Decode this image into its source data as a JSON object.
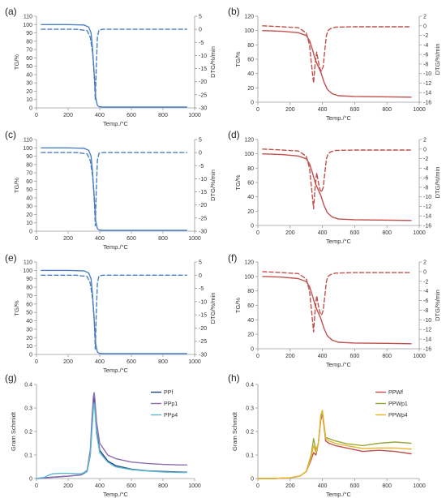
{
  "colors": {
    "blue": "#4a7fc1",
    "red": "#c0504d",
    "ppf": "#1f3f7a",
    "ppp1": "#8e6bb3",
    "ppp4": "#5bb8cf",
    "ppwf": "#c0504d",
    "ppwp1": "#9aa83a",
    "ppwp4": "#e8b52c",
    "axis": "#9a9a9a",
    "text": "#333333"
  },
  "chart_data": [
    {
      "panel": "(a)",
      "type": "line",
      "xlabel": "Temp./°C",
      "ylabel": "TG/%",
      "y2label": "DTG/%/min",
      "xlim": [
        0,
        1000
      ],
      "xticks": [
        0,
        200,
        400,
        600,
        800,
        1000
      ],
      "ylim": [
        0,
        110
      ],
      "yticks": [
        0,
        10,
        20,
        30,
        40,
        50,
        60,
        70,
        80,
        90,
        100,
        110
      ],
      "y2lim": [
        -30,
        5
      ],
      "y2ticks": [
        -30,
        -25,
        -20,
        -15,
        -10,
        -5,
        0,
        5
      ],
      "series": [
        {
          "axis": "left",
          "style": "solid",
          "color_key": "blue",
          "x": [
            30,
            200,
            300,
            330,
            345,
            355,
            365,
            375,
            385,
            395,
            420,
            600,
            800,
            950
          ],
          "y": [
            100,
            100,
            99.5,
            97,
            90,
            70,
            40,
            12,
            3,
            1.5,
            1,
            1,
            1,
            1
          ]
        },
        {
          "axis": "right",
          "style": "dashed",
          "color_key": "blue",
          "x": [
            30,
            250,
            320,
            340,
            355,
            365,
            372,
            378,
            385,
            395,
            420,
            600,
            800,
            950
          ],
          "y": [
            0,
            0,
            -0.5,
            -3,
            -9,
            -17,
            -27,
            -15,
            -3,
            -0.3,
            0,
            0,
            0,
            0
          ]
        }
      ]
    },
    {
      "panel": "(b)",
      "type": "line",
      "xlabel": "Temp./°C",
      "ylabel": "TG/%",
      "y2label": "DTG/%/min",
      "xlim": [
        0,
        1000
      ],
      "xticks": [
        0,
        200,
        400,
        600,
        800,
        1000
      ],
      "ylim": [
        0,
        120
      ],
      "yticks": [
        0,
        20,
        40,
        60,
        80,
        100,
        120
      ],
      "y2lim": [
        -16,
        2
      ],
      "y2ticks": [
        -16,
        -14,
        -12,
        -10,
        -8,
        -6,
        -4,
        -2,
        0,
        2
      ],
      "series": [
        {
          "axis": "left",
          "style": "solid",
          "color_key": "red",
          "x": [
            30,
            150,
            250,
            300,
            320,
            340,
            355,
            370,
            390,
            410,
            430,
            460,
            500,
            600,
            800,
            950
          ],
          "y": [
            100,
            99,
            97,
            93,
            86,
            72,
            60,
            52,
            42,
            28,
            18,
            12,
            9,
            8,
            7.5,
            7
          ]
        },
        {
          "axis": "right",
          "style": "dashed",
          "color_key": "red",
          "x": [
            30,
            150,
            250,
            300,
            320,
            335,
            345,
            355,
            365,
            375,
            385,
            395,
            405,
            415,
            425,
            435,
            450,
            480,
            600,
            800,
            950
          ],
          "y": [
            0,
            -0.2,
            -0.4,
            -1.5,
            -4,
            -9,
            -12,
            -8,
            -5.5,
            -7.5,
            -9,
            -9.5,
            -8.5,
            -5,
            -2,
            -1,
            -0.6,
            -0.3,
            -0.2,
            -0.2,
            -0.2
          ]
        }
      ]
    },
    {
      "panel": "(c)",
      "type": "line",
      "xlabel": "Temp./°C",
      "ylabel": "TG/%",
      "y2label": "DTG/%/min",
      "xlim": [
        0,
        1000
      ],
      "xticks": [
        0,
        200,
        400,
        600,
        800,
        1000
      ],
      "ylim": [
        0,
        110
      ],
      "yticks": [
        0,
        10,
        20,
        30,
        40,
        50,
        60,
        70,
        80,
        90,
        100,
        110
      ],
      "y2lim": [
        -30,
        5
      ],
      "y2ticks": [
        -30,
        -25,
        -20,
        -15,
        -10,
        -5,
        0,
        5
      ],
      "series": [
        {
          "axis": "left",
          "style": "solid",
          "color_key": "blue",
          "x": [
            30,
            200,
            300,
            330,
            345,
            355,
            365,
            375,
            385,
            395,
            420,
            600,
            800,
            950
          ],
          "y": [
            100,
            100,
            99.5,
            97,
            90,
            70,
            40,
            12,
            3,
            1.5,
            1,
            1,
            1,
            1
          ]
        },
        {
          "axis": "right",
          "style": "dashed",
          "color_key": "blue",
          "x": [
            30,
            250,
            320,
            340,
            355,
            365,
            372,
            378,
            385,
            395,
            420,
            600,
            800,
            950
          ],
          "y": [
            0,
            0,
            -0.5,
            -3,
            -9,
            -17,
            -28,
            -15,
            -3,
            -0.3,
            0,
            0,
            0,
            0
          ]
        }
      ]
    },
    {
      "panel": "(d)",
      "type": "line",
      "xlabel": "Temp./°C",
      "ylabel": "TG/%",
      "y2label": "DTG/%/min",
      "xlim": [
        0,
        1000
      ],
      "xticks": [
        0,
        200,
        400,
        600,
        800,
        1000
      ],
      "ylim": [
        0,
        120
      ],
      "yticks": [
        0,
        20,
        40,
        60,
        80,
        100,
        120
      ],
      "y2lim": [
        -16,
        2
      ],
      "y2ticks": [
        -16,
        -14,
        -12,
        -10,
        -8,
        -6,
        -4,
        -2,
        0,
        2
      ],
      "series": [
        {
          "axis": "left",
          "style": "solid",
          "color_key": "red",
          "x": [
            30,
            150,
            250,
            300,
            320,
            340,
            355,
            370,
            390,
            410,
            430,
            460,
            500,
            600,
            800,
            950
          ],
          "y": [
            100,
            99,
            97,
            93,
            86,
            72,
            60,
            52,
            42,
            28,
            18,
            12,
            9,
            8,
            7.5,
            7
          ]
        },
        {
          "axis": "right",
          "style": "dashed",
          "color_key": "red",
          "x": [
            30,
            150,
            250,
            300,
            320,
            335,
            345,
            355,
            365,
            375,
            385,
            395,
            405,
            415,
            425,
            435,
            450,
            480,
            600,
            800,
            950
          ],
          "y": [
            0,
            -0.2,
            -0.4,
            -1.5,
            -4,
            -9,
            -12.5,
            -8,
            -5,
            -7,
            -8.5,
            -9,
            -8,
            -5,
            -2,
            -1,
            -0.6,
            -0.3,
            -0.2,
            -0.2,
            -0.2
          ]
        }
      ]
    },
    {
      "panel": "(e)",
      "type": "line",
      "xlabel": "Temp./°C",
      "ylabel": "TG/%",
      "y2label": "DTG/%/min",
      "xlim": [
        0,
        1000
      ],
      "xticks": [
        0,
        200,
        400,
        600,
        800,
        1000
      ],
      "ylim": [
        0,
        110
      ],
      "yticks": [
        0,
        10,
        20,
        30,
        40,
        50,
        60,
        70,
        80,
        90,
        100,
        110
      ],
      "y2lim": [
        -30,
        5
      ],
      "y2ticks": [
        -30,
        -25,
        -20,
        -15,
        -10,
        -5,
        0,
        5
      ],
      "series": [
        {
          "axis": "left",
          "style": "solid",
          "color_key": "blue",
          "x": [
            30,
            200,
            300,
            330,
            345,
            355,
            365,
            375,
            385,
            395,
            420,
            600,
            800,
            950
          ],
          "y": [
            100,
            100,
            99.5,
            97,
            90,
            70,
            40,
            12,
            3,
            1.5,
            1,
            1,
            1,
            1
          ]
        },
        {
          "axis": "right",
          "style": "dashed",
          "color_key": "blue",
          "x": [
            30,
            250,
            320,
            340,
            355,
            365,
            372,
            378,
            385,
            395,
            420,
            600,
            800,
            950
          ],
          "y": [
            0,
            0,
            -0.5,
            -3,
            -9,
            -17,
            -28,
            -15,
            -3,
            -0.3,
            0,
            0,
            0,
            0
          ]
        }
      ]
    },
    {
      "panel": "(f)",
      "type": "line",
      "xlabel": "Temp./°C",
      "ylabel": "TG/%",
      "y2label": "DTG/%/min",
      "xlim": [
        0,
        1000
      ],
      "xticks": [
        0,
        200,
        400,
        600,
        800,
        1000
      ],
      "ylim": [
        0,
        120
      ],
      "yticks": [
        0,
        20,
        40,
        60,
        80,
        100,
        120
      ],
      "y2lim": [
        -16,
        2
      ],
      "y2ticks": [
        -16,
        -14,
        -12,
        -10,
        -8,
        -6,
        -4,
        -2,
        0,
        2
      ],
      "series": [
        {
          "axis": "left",
          "style": "solid",
          "color_key": "red",
          "x": [
            30,
            150,
            250,
            300,
            320,
            340,
            355,
            370,
            390,
            410,
            430,
            460,
            500,
            600,
            800,
            950
          ],
          "y": [
            100,
            99,
            97,
            93,
            86,
            72,
            60,
            52,
            42,
            28,
            18,
            12,
            9,
            8,
            7.5,
            7
          ]
        },
        {
          "axis": "right",
          "style": "dashed",
          "color_key": "red",
          "x": [
            30,
            150,
            250,
            300,
            320,
            335,
            345,
            355,
            365,
            375,
            385,
            395,
            405,
            415,
            425,
            435,
            450,
            480,
            600,
            800,
            950
          ],
          "y": [
            0,
            -0.2,
            -0.4,
            -1.5,
            -4,
            -9,
            -12.5,
            -8,
            -5,
            -7,
            -8.5,
            -9,
            -8,
            -5,
            -2,
            -1,
            -0.6,
            -0.3,
            -0.2,
            -0.2,
            -0.2
          ]
        }
      ]
    },
    {
      "panel": "(g)",
      "type": "line",
      "xlabel": "Temp./°C",
      "ylabel": "Gram Schmidt",
      "xlim": [
        0,
        1000
      ],
      "xticks": [
        0,
        200,
        400,
        600,
        800,
        1000
      ],
      "ylim": [
        0,
        0.4
      ],
      "yticks": [
        0,
        0.1,
        0.2,
        0.3,
        0.4
      ],
      "legend": "right",
      "series": [
        {
          "name": "PPf",
          "color_key": "ppf",
          "x": [
            0,
            50,
            100,
            200,
            280,
            320,
            340,
            350,
            360,
            365,
            370,
            380,
            400,
            450,
            500,
            600,
            700,
            800,
            900,
            950
          ],
          "y": [
            0,
            0.003,
            0.006,
            0.01,
            0.015,
            0.03,
            0.1,
            0.22,
            0.33,
            0.345,
            0.3,
            0.2,
            0.12,
            0.075,
            0.055,
            0.04,
            0.033,
            0.03,
            0.028,
            0.027
          ]
        },
        {
          "name": "PPp1",
          "color_key": "ppp1",
          "x": [
            0,
            50,
            100,
            200,
            280,
            320,
            340,
            350,
            360,
            365,
            370,
            380,
            400,
            450,
            500,
            600,
            700,
            800,
            900,
            950
          ],
          "y": [
            0,
            0.002,
            0.005,
            0.01,
            0.016,
            0.035,
            0.12,
            0.25,
            0.35,
            0.365,
            0.33,
            0.24,
            0.15,
            0.1,
            0.085,
            0.07,
            0.064,
            0.06,
            0.058,
            0.058
          ]
        },
        {
          "name": "PPp4",
          "color_key": "ppp4",
          "x": [
            0,
            50,
            80,
            100,
            150,
            200,
            280,
            320,
            340,
            350,
            360,
            365,
            370,
            380,
            400,
            450,
            500,
            600,
            700,
            800,
            900,
            950
          ],
          "y": [
            0,
            0.005,
            0.015,
            0.02,
            0.022,
            0.022,
            0.02,
            0.03,
            0.1,
            0.2,
            0.3,
            0.32,
            0.28,
            0.19,
            0.11,
            0.07,
            0.05,
            0.038,
            0.032,
            0.028,
            0.026,
            0.026
          ]
        }
      ]
    },
    {
      "panel": "(h)",
      "type": "line",
      "xlabel": "Temp./°C",
      "ylabel": "Gram Schmidt",
      "xlim": [
        0,
        1000
      ],
      "xticks": [
        0,
        200,
        400,
        600,
        800,
        1000
      ],
      "ylim": [
        0,
        0.4
      ],
      "yticks": [
        0,
        0.1,
        0.2,
        0.3,
        0.4
      ],
      "legend": "right",
      "series": [
        {
          "name": "PPWf",
          "color_key": "ppwf",
          "x": [
            0,
            100,
            200,
            260,
            300,
            330,
            345,
            360,
            375,
            390,
            400,
            410,
            420,
            440,
            480,
            550,
            650,
            750,
            850,
            950
          ],
          "y": [
            0,
            0,
            0.003,
            0.01,
            0.03,
            0.08,
            0.11,
            0.1,
            0.15,
            0.25,
            0.275,
            0.22,
            0.16,
            0.15,
            0.14,
            0.13,
            0.115,
            0.12,
            0.115,
            0.105
          ]
        },
        {
          "name": "PPWp1",
          "color_key": "ppwp1",
          "x": [
            0,
            100,
            200,
            260,
            300,
            330,
            345,
            360,
            375,
            390,
            400,
            410,
            420,
            440,
            480,
            550,
            650,
            750,
            850,
            950
          ],
          "y": [
            0,
            0,
            0.003,
            0.01,
            0.03,
            0.1,
            0.17,
            0.12,
            0.15,
            0.26,
            0.28,
            0.23,
            0.175,
            0.17,
            0.16,
            0.148,
            0.14,
            0.15,
            0.155,
            0.15
          ]
        },
        {
          "name": "PPWp4",
          "color_key": "ppwp4",
          "x": [
            0,
            100,
            200,
            260,
            300,
            330,
            345,
            360,
            375,
            390,
            400,
            410,
            420,
            440,
            480,
            550,
            650,
            750,
            850,
            950
          ],
          "y": [
            0,
            0,
            0.003,
            0.01,
            0.03,
            0.09,
            0.14,
            0.11,
            0.15,
            0.27,
            0.29,
            0.23,
            0.17,
            0.16,
            0.15,
            0.14,
            0.128,
            0.13,
            0.13,
            0.125
          ]
        }
      ]
    }
  ]
}
